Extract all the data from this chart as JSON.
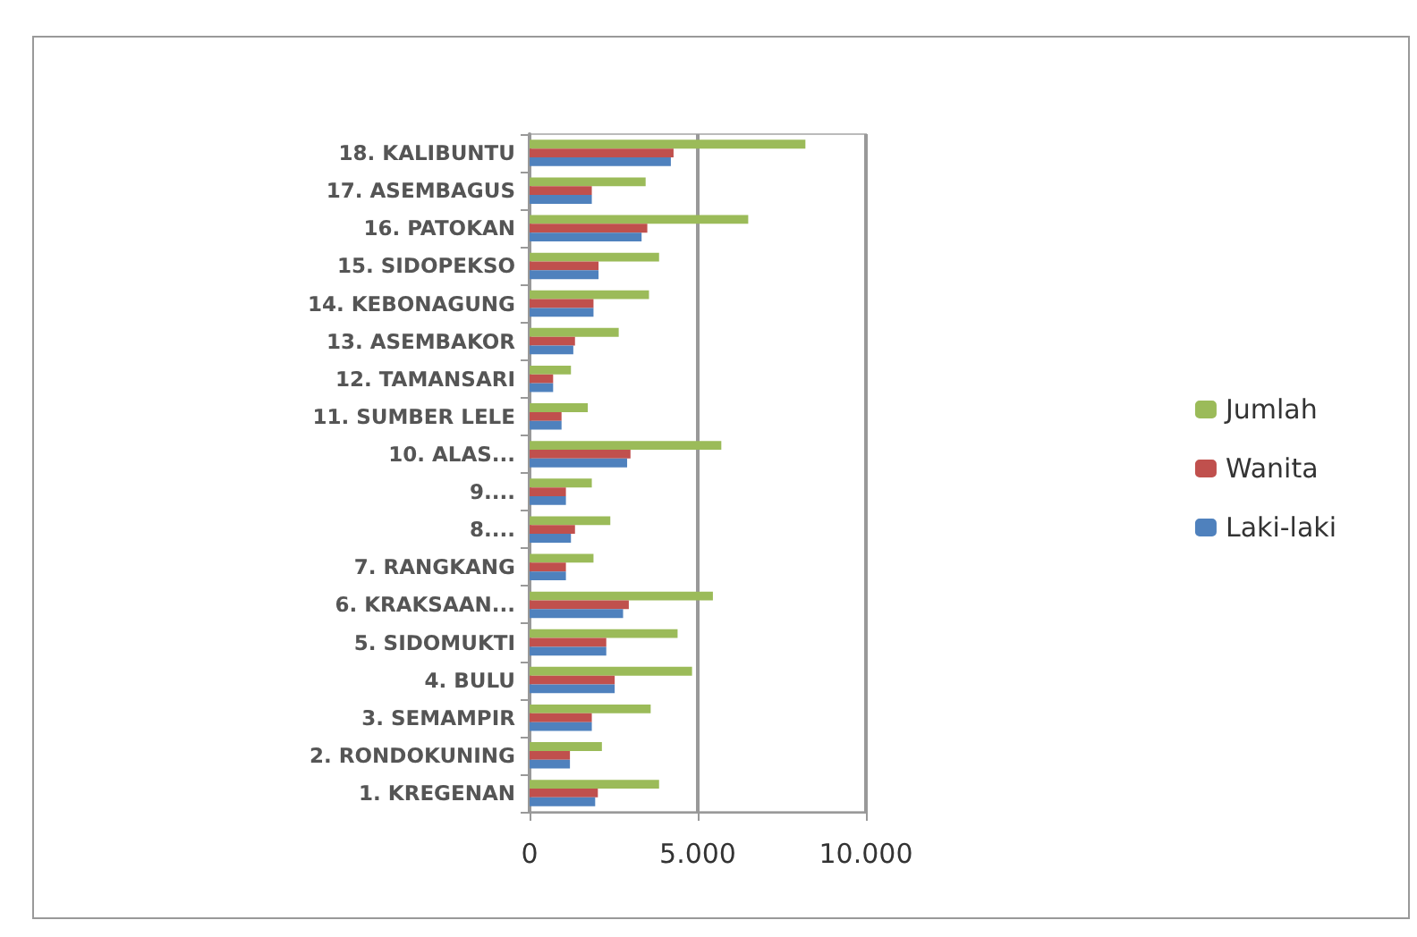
{
  "chart_data": {
    "type": "bar",
    "orientation": "horizontal",
    "categories": [
      "18. KALIBUNTU",
      "17. ASEMBAGUS",
      "16. PATOKAN",
      "15. SIDOPEKSO",
      "14. KEBONAGUNG",
      "13. ASEMBAKOR",
      "12. TAMANSARI",
      "11. SUMBER LELE",
      "10. ALAS...",
      "9....",
      "8....",
      "7. RANGKANG",
      "6. KRAKSAAN...",
      "5. SIDOMUKTI",
      "4. BULU",
      "3. SEMAMPIR",
      "2. RONDOKUNING",
      "1. KREGENAN"
    ],
    "series": [
      {
        "name": "Jumlah",
        "color": "#9bbb59",
        "values": [
          8200,
          3450,
          6500,
          3850,
          3550,
          2650,
          1230,
          1730,
          5700,
          1850,
          2400,
          1900,
          5450,
          4400,
          4830,
          3600,
          2150,
          3850
        ]
      },
      {
        "name": "Wanita",
        "color": "#c0504d",
        "values": [
          4280,
          1850,
          3500,
          2050,
          1900,
          1350,
          700,
          950,
          3000,
          1080,
          1350,
          1080,
          2950,
          2280,
          2530,
          1850,
          1200,
          2030
        ]
      },
      {
        "name": "Laki-laki",
        "color": "#4f81bd",
        "values": [
          4200,
          1850,
          3330,
          2050,
          1900,
          1300,
          700,
          950,
          2900,
          1080,
          1230,
          1080,
          2780,
          2280,
          2530,
          1850,
          1200,
          1950
        ]
      }
    ],
    "xlim": [
      0,
      10000
    ],
    "xticks": [
      0,
      {
        "value": 5000,
        "label": "5.000"
      },
      {
        "value": 10000,
        "label": "10.000"
      }
    ],
    "grid": "x",
    "legend": "right"
  }
}
